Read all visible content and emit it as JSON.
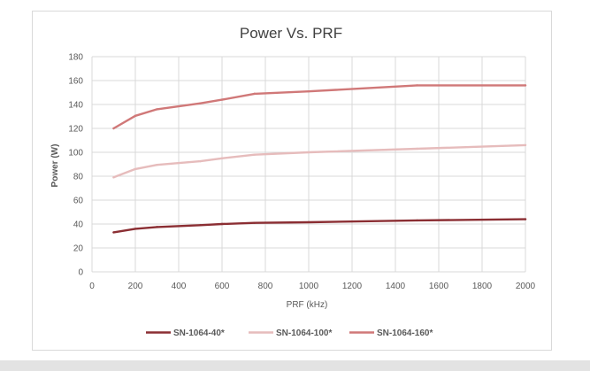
{
  "chart_data": {
    "type": "line",
    "title": "Power Vs. PRF",
    "xlabel": "PRF (kHz)",
    "ylabel": "Power (W)",
    "xlim": [
      0,
      2000
    ],
    "ylim": [
      0,
      180
    ],
    "x_ticks": [
      0,
      200,
      400,
      600,
      800,
      1000,
      1200,
      1400,
      1600,
      1800,
      2000
    ],
    "y_ticks": [
      0,
      20,
      40,
      60,
      80,
      100,
      120,
      140,
      160,
      180
    ],
    "grid": true,
    "legend_position": "bottom",
    "series": [
      {
        "name": "SN-1064-40*",
        "color": "#8b2e33",
        "points": [
          [
            100,
            33
          ],
          [
            200,
            36
          ],
          [
            300,
            37.5
          ],
          [
            500,
            39
          ],
          [
            600,
            40
          ],
          [
            750,
            41
          ],
          [
            1000,
            41.5
          ],
          [
            1500,
            43
          ],
          [
            2000,
            44
          ]
        ]
      },
      {
        "name": "SN-1064-100*",
        "color": "#e6bcbc",
        "points": [
          [
            100,
            79
          ],
          [
            200,
            86
          ],
          [
            300,
            89.5
          ],
          [
            500,
            92.5
          ],
          [
            600,
            95
          ],
          [
            750,
            98
          ],
          [
            1000,
            100
          ],
          [
            1500,
            103
          ],
          [
            2000,
            106
          ]
        ]
      },
      {
        "name": "SN-1064-160*",
        "color": "#d07878",
        "points": [
          [
            100,
            120
          ],
          [
            200,
            130.5
          ],
          [
            300,
            136
          ],
          [
            500,
            141
          ],
          [
            600,
            144
          ],
          [
            750,
            149
          ],
          [
            1000,
            151
          ],
          [
            1500,
            156
          ],
          [
            2000,
            156
          ]
        ]
      }
    ]
  }
}
